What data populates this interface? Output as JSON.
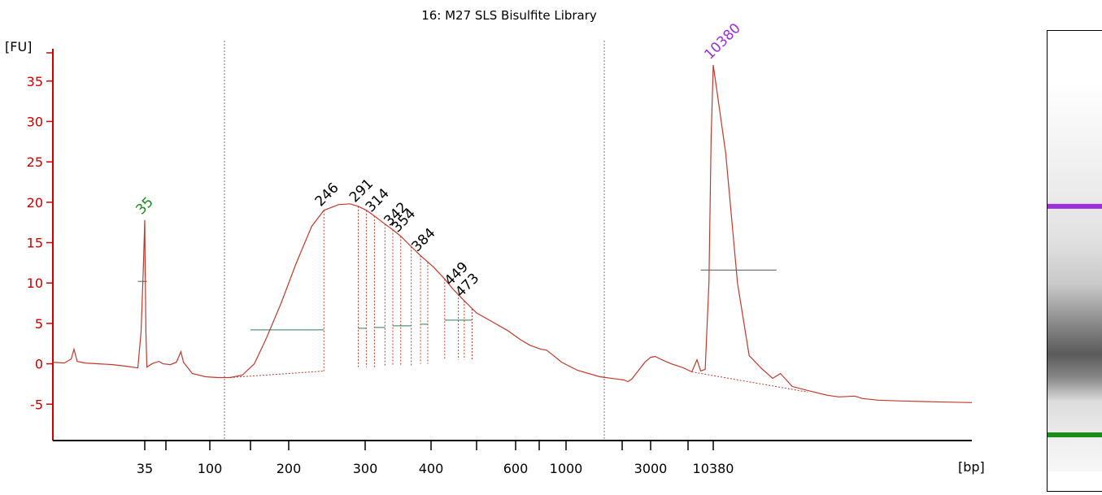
{
  "colors": {
    "axis": "#cc0000",
    "trace": "#c0392b",
    "marker_lower": "#1a8c1a",
    "marker_upper": "#9b30d9",
    "peak_label": "#000000",
    "bar": "#2e7d4f"
  },
  "chart_data": {
    "type": "line",
    "title": "16: M27 SLS Bisulfite Library",
    "ylabel": "[FU]",
    "xlabel": "[bp]",
    "ylim": [
      -9.5,
      39
    ],
    "y_ticks": [
      -5,
      0,
      5,
      10,
      15,
      20,
      25,
      30,
      35
    ],
    "y_tick_labels": [
      "-5",
      "0",
      "5",
      "10",
      "15",
      "20",
      "25",
      "30",
      "35"
    ],
    "x_tick_labels": [
      "35",
      "100",
      "200",
      "300",
      "400",
      "600",
      "1000",
      "3000",
      "10380"
    ],
    "x_ticks_bp": [
      35,
      50,
      100,
      150,
      200,
      300,
      400,
      500,
      600,
      700,
      1000,
      1500,
      3000,
      7000,
      10380
    ],
    "x_range_bp": [
      15,
      17000
    ],
    "region_boundaries_bp": [
      120,
      1700
    ],
    "series": [
      {
        "points": [
          [
            15,
            0.2
          ],
          [
            17.5,
            0.1
          ],
          [
            19,
            0.6
          ],
          [
            19.6,
            1.8
          ],
          [
            20.3,
            0.3
          ],
          [
            22,
            0.1
          ],
          [
            25,
            0.0
          ],
          [
            28,
            -0.1
          ],
          [
            31,
            -0.3
          ],
          [
            33.5,
            -0.5
          ],
          [
            34.2,
            4.0
          ],
          [
            34.7,
            12.0
          ],
          [
            35,
            17.8
          ],
          [
            35.3,
            12.0
          ],
          [
            35.8,
            4.0
          ],
          [
            36.5,
            -0.4
          ],
          [
            40,
            0.0
          ],
          [
            45,
            0.3
          ],
          [
            48,
            0.0
          ],
          [
            55,
            -0.1
          ],
          [
            62,
            0.2
          ],
          [
            67,
            1.5
          ],
          [
            70,
            0.2
          ],
          [
            80,
            -1.2
          ],
          [
            95,
            -1.6
          ],
          [
            110,
            -1.7
          ],
          [
            125,
            -1.7
          ],
          [
            140,
            -1.4
          ],
          [
            155,
            0.0
          ],
          [
            170,
            3.0
          ],
          [
            190,
            7.5
          ],
          [
            210,
            12.5
          ],
          [
            230,
            17.0
          ],
          [
            246,
            19.0
          ],
          [
            265,
            19.7
          ],
          [
            280,
            19.8
          ],
          [
            291,
            19.5
          ],
          [
            302,
            19.0
          ],
          [
            314,
            18.3
          ],
          [
            330,
            17.3
          ],
          [
            342,
            16.6
          ],
          [
            354,
            15.8
          ],
          [
            370,
            14.5
          ],
          [
            384,
            13.4
          ],
          [
            405,
            12.0
          ],
          [
            430,
            10.5
          ],
          [
            449,
            9.2
          ],
          [
            473,
            7.8
          ],
          [
            500,
            6.3
          ],
          [
            540,
            5.2
          ],
          [
            580,
            4.1
          ],
          [
            620,
            3.0
          ],
          [
            660,
            2.3
          ],
          [
            720,
            1.8
          ],
          [
            780,
            1.7
          ],
          [
            840,
            1.2
          ],
          [
            950,
            0.2
          ],
          [
            1100,
            -0.8
          ],
          [
            1300,
            -1.6
          ],
          [
            1600,
            -2.0
          ],
          [
            1800,
            -2.2
          ],
          [
            2000,
            -1.9
          ],
          [
            2300,
            -1.0
          ],
          [
            2700,
            0.2
          ],
          [
            3000,
            0.8
          ],
          [
            3500,
            0.9
          ],
          [
            4200,
            0.5
          ],
          [
            5200,
            0.0
          ],
          [
            6500,
            -0.5
          ],
          [
            7500,
            -1.0
          ],
          [
            8200,
            0.5
          ],
          [
            8700,
            -0.9
          ],
          [
            9300,
            -0.7
          ],
          [
            9800,
            10.0
          ],
          [
            10100,
            28.0
          ],
          [
            10380,
            37.0
          ],
          [
            10700,
            26.0
          ],
          [
            11000,
            10.0
          ],
          [
            11300,
            1.0
          ],
          [
            11600,
            -0.5
          ],
          [
            11900,
            -1.8
          ],
          [
            12100,
            -1.2
          ],
          [
            12400,
            -2.8
          ],
          [
            12800,
            -3.3
          ],
          [
            13300,
            -3.9
          ],
          [
            13600,
            -4.1
          ],
          [
            14000,
            -4.0
          ],
          [
            14200,
            -4.3
          ],
          [
            14600,
            -4.5
          ],
          [
            15200,
            -4.6
          ],
          [
            16000,
            -4.7
          ],
          [
            17000,
            -4.8
          ]
        ]
      }
    ],
    "markers": [
      {
        "label": "35",
        "bp": 35,
        "fu": 17.8,
        "color_key": "marker_lower"
      },
      {
        "label": "10380",
        "bp": 10380,
        "fu": 37.0,
        "color_key": "marker_upper"
      }
    ],
    "peaks": [
      {
        "label": "246",
        "bp": 246,
        "fu": 19.0
      },
      {
        "label": "291",
        "bp": 291,
        "fu": 19.5
      },
      {
        "label": "314",
        "bp": 314,
        "fu": 18.3
      },
      {
        "label": "342",
        "bp": 342,
        "fu": 16.6
      },
      {
        "label": "354",
        "bp": 354,
        "fu": 15.8
      },
      {
        "label": "384",
        "bp": 384,
        "fu": 13.4
      },
      {
        "label": "449",
        "bp": 449,
        "fu": 9.2
      },
      {
        "label": "473",
        "bp": 473,
        "fu": 7.8
      }
    ],
    "peak_bars": [
      {
        "from_bp": 150,
        "to_bp": 246,
        "fu": 4.2
      },
      {
        "from_bp": 291,
        "to_bp": 302,
        "fu": 4.4
      },
      {
        "from_bp": 314,
        "to_bp": 330,
        "fu": 4.5
      },
      {
        "from_bp": 342,
        "to_bp": 370,
        "fu": 4.7
      },
      {
        "from_bp": 384,
        "to_bp": 395,
        "fu": 4.9
      },
      {
        "from_bp": 430,
        "to_bp": 490,
        "fu": 5.4
      },
      {
        "from_bp": 8700,
        "to_bp": 12000,
        "fu": 11.6
      }
    ]
  },
  "gel": {
    "bands": [
      {
        "fraction": 0.38,
        "color_key": "marker_upper"
      },
      {
        "fraction": 0.875,
        "color_key": "marker_lower"
      }
    ]
  }
}
